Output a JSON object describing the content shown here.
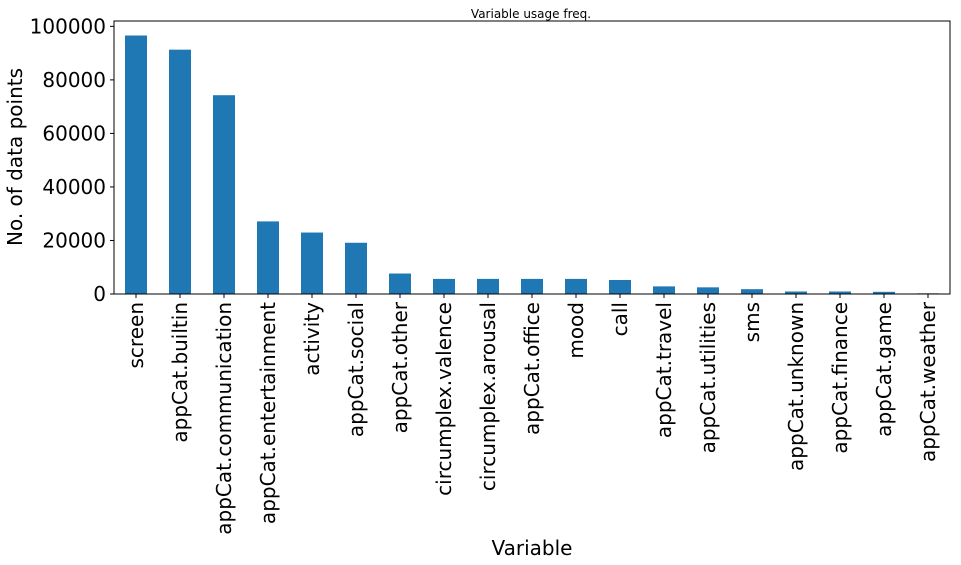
{
  "chart_data": {
    "type": "bar",
    "title": "Variable usage freq.",
    "xlabel": "Variable",
    "ylabel": "No. of data points",
    "categories": [
      "screen",
      "appCat.builtin",
      "appCat.communication",
      "appCat.entertainment",
      "activity",
      "appCat.social",
      "appCat.other",
      "circumplex.valence",
      "circumplex.arousal",
      "appCat.office",
      "mood",
      "call",
      "appCat.travel",
      "appCat.utilities",
      "sms",
      "appCat.unknown",
      "appCat.finance",
      "appCat.game",
      "appCat.weather"
    ],
    "values": [
      96578,
      91288,
      74276,
      27125,
      22965,
      19145,
      7650,
      5643,
      5643,
      5642,
      5641,
      5239,
      2846,
      2487,
      1798,
      939,
      939,
      813,
      255
    ],
    "ylim": [
      0,
      102000
    ],
    "yticks": [
      0,
      20000,
      40000,
      60000,
      80000,
      100000
    ],
    "bar_color": "#1f77b4",
    "grid": false,
    "legend": "none"
  }
}
